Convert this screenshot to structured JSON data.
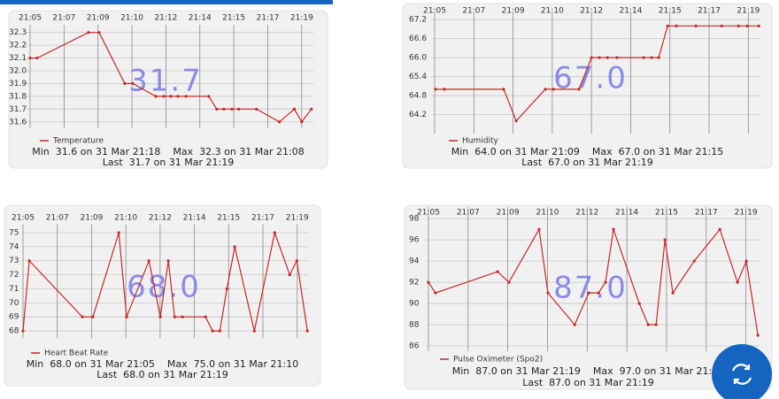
{
  "chart_data": [
    {
      "type": "line",
      "series": [
        {
          "name": "Temperature",
          "color": "#c62828",
          "values": [
            32.1,
            32.1,
            32.3,
            32.3,
            31.9,
            31.9,
            31.8,
            31.8,
            31.8,
            31.8,
            31.8,
            31.8,
            31.7,
            31.7,
            31.7,
            31.7,
            31.7,
            31.6,
            31.7,
            31.6,
            31.7
          ]
        }
      ],
      "x": [
        5,
        5.36,
        8.01,
        8.56,
        9.88,
        10.29,
        11.48,
        11.89,
        12.25,
        12.62,
        13.03,
        14.21,
        14.62,
        14.99,
        15.4,
        15.76,
        16.67,
        17.85,
        18.62,
        19,
        19.5
      ],
      "xlim": [
        4.8,
        19.6
      ],
      "xticks": [
        {
          "value": 5,
          "label": "21:05"
        },
        {
          "value": 6.75,
          "label": "21:07"
        },
        {
          "value": 8.5,
          "label": "21:09"
        },
        {
          "value": 10.25,
          "label": "21:10"
        },
        {
          "value": 12,
          "label": "21:12"
        },
        {
          "value": 13.75,
          "label": "21:14"
        },
        {
          "value": 15.5,
          "label": "21:15"
        },
        {
          "value": 17.25,
          "label": "21:17"
        },
        {
          "value": 19,
          "label": "21:19"
        }
      ],
      "ylim": [
        31.55,
        32.36
      ],
      "yticks": [
        31.6,
        31.7,
        31.8,
        31.9,
        {
          "value": 32,
          "label": "32.0"
        },
        32.1,
        32.2,
        32.3
      ],
      "current": "31.7",
      "stats": "Min  31.6 on 31 Mar 21:18    Max  32.3 on 31 Mar 21:08",
      "last": "Last  31.7 on 31 Mar 21:19"
    },
    {
      "type": "line",
      "series": [
        {
          "name": "Humidity",
          "color": "#c62828",
          "values": [
            65.0,
            65.0,
            65.0,
            64.0,
            65.0,
            65.0,
            65.0,
            66.0,
            66.0,
            66.0,
            66.0,
            66.0,
            66.0,
            66.0,
            67.0,
            67.0,
            67.0,
            67.0,
            67.0,
            67.0,
            67.0
          ]
        }
      ],
      "x": [
        5.04,
        5.43,
        8.08,
        8.64,
        9.94,
        10.3,
        11.44,
        12.0,
        12.35,
        12.71,
        13.14,
        14.33,
        14.68,
        15.0,
        15.4,
        15.79,
        16.66,
        17.81,
        18.56,
        18.95,
        19.47
      ],
      "xlim": [
        4.85,
        19.5
      ],
      "xticks": [
        {
          "value": 5,
          "label": "21:05"
        },
        {
          "value": 6.75,
          "label": "21:07"
        },
        {
          "value": 8.5,
          "label": "21:09"
        },
        {
          "value": 10.25,
          "label": "21:10"
        },
        {
          "value": 12,
          "label": "21:12"
        },
        {
          "value": 13.75,
          "label": "21:14"
        },
        {
          "value": 15.5,
          "label": "21:15"
        },
        {
          "value": 17.25,
          "label": "21:17"
        },
        {
          "value": 19,
          "label": "21:19"
        }
      ],
      "ylim": [
        63.6,
        67.4
      ],
      "yticks": [
        64.2,
        64.8,
        65.4,
        {
          "value": 66,
          "label": "66.0"
        },
        66.6,
        67.2
      ],
      "current": "67.0",
      "stats": "Min  64.0 on 31 Mar 21:09    Max  67.0 on 31 Mar 21:15",
      "last": "Last  67.0 on 31 Mar 21:19"
    },
    {
      "type": "line",
      "series": [
        {
          "name": "Heart Beat Rate",
          "color": "#c62828",
          "values": [
            68,
            73,
            69,
            69,
            75,
            69,
            73,
            69,
            73,
            69,
            69,
            69,
            68,
            68,
            71,
            74,
            68,
            75,
            72,
            73,
            68
          ]
        }
      ],
      "x": [
        5,
        5.32,
        8.03,
        8.57,
        9.89,
        10.29,
        11.43,
        12.01,
        12.42,
        12.74,
        13.14,
        14.32,
        14.68,
        15.05,
        15.41,
        15.81,
        16.81,
        17.85,
        18.62,
        18.98,
        19.52
      ],
      "xlim": [
        4.9,
        19.6
      ],
      "xticks": [
        {
          "value": 5,
          "label": "21:05"
        },
        {
          "value": 6.75,
          "label": "21:07"
        },
        {
          "value": 8.5,
          "label": "21:09"
        },
        {
          "value": 10.25,
          "label": "21:10"
        },
        {
          "value": 12,
          "label": "21:12"
        },
        {
          "value": 13.75,
          "label": "21:14"
        },
        {
          "value": 15.5,
          "label": "21:15"
        },
        {
          "value": 17.25,
          "label": "21:17"
        },
        {
          "value": 19,
          "label": "21:19"
        }
      ],
      "ylim": [
        67.5,
        75.6
      ],
      "yticks": [
        68,
        69,
        70,
        71,
        72,
        73,
        74,
        75
      ],
      "current": "68.0",
      "stats": "Min  68.0 on 31 Mar 21:05    Max  75.0 on 31 Mar 21:10",
      "last": "Last  68.0 on 31 Mar 21:19"
    },
    {
      "type": "line",
      "series": [
        {
          "name": "Pulse Oximeter (Spo2)",
          "color": "#c62828",
          "values": [
            92,
            91,
            93,
            92,
            97,
            91,
            88,
            91,
            91,
            92,
            97,
            90,
            88,
            88,
            96,
            91,
            94,
            97,
            92,
            94,
            87
          ]
        }
      ],
      "x": [
        5,
        5.31,
        8.05,
        8.55,
        9.88,
        10.27,
        11.45,
        12.07,
        12.5,
        12.81,
        13.16,
        14.3,
        14.69,
        15.04,
        15.43,
        15.78,
        16.72,
        17.85,
        18.63,
        19.02,
        19.53
      ],
      "xlim": [
        4.9,
        19.6
      ],
      "xticks": [
        {
          "value": 5,
          "label": "21:05"
        },
        {
          "value": 6.75,
          "label": "21:07"
        },
        {
          "value": 8.5,
          "label": "21:09"
        },
        {
          "value": 10.25,
          "label": "21:10"
        },
        {
          "value": 12,
          "label": "21:12"
        },
        {
          "value": 13.75,
          "label": "21:14"
        },
        {
          "value": 15.5,
          "label": "21:15"
        },
        {
          "value": 17.25,
          "label": "21:17"
        },
        {
          "value": 19,
          "label": "21:19"
        }
      ],
      "ylim": [
        85.5,
        99.1
      ],
      "yticks": [
        86,
        88,
        90,
        92,
        94,
        96,
        98
      ],
      "current": "87.0",
      "stats": "Min  87.0 on 31 Mar 21:19    Max  97.0 on 31 Mar 21:10",
      "last": "Last  87.0 on 31 Mar 21:19"
    }
  ]
}
